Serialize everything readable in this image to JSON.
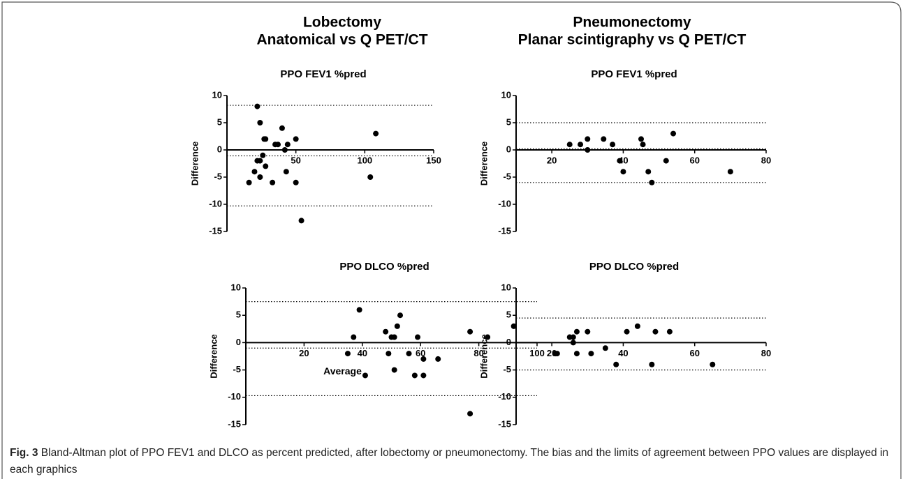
{
  "headers": [
    {
      "title": "Lobectomy",
      "subtitle": "Anatomical vs Q PET/CT"
    },
    {
      "title": "Pneumonectomy",
      "subtitle": "Planar scintigraphy vs Q PET/CT"
    }
  ],
  "chart_data": [
    {
      "type": "scatter",
      "title": "PPO FEV1 %pred",
      "y_label": "Difference",
      "color": "#000000",
      "x": [
        26,
        22,
        24,
        27,
        28,
        35,
        37,
        40,
        42,
        44,
        50,
        108,
        28,
        20,
        24,
        22,
        24,
        16,
        33,
        43,
        50,
        104,
        54
      ],
      "values": [
        -1,
        8,
        5,
        2,
        2,
        1,
        1,
        4,
        0,
        1,
        2,
        3,
        -3,
        -4,
        -2,
        -2,
        -5,
        -6,
        -6,
        -4,
        -6,
        -5,
        -13
      ],
      "reference_lines": [
        8.2,
        -1.1,
        -10.3
      ],
      "xlim": [
        0,
        150
      ],
      "xticks": [
        50,
        100,
        150
      ],
      "ylim": [
        -15,
        10
      ],
      "yticks": [
        10,
        5,
        0,
        -5,
        -10,
        -15
      ]
    },
    {
      "type": "scatter",
      "title": "PPO FEV1 %pred",
      "y_label": "Difference",
      "color": "#000000",
      "x": [
        25,
        28,
        30,
        30,
        34.5,
        37,
        40,
        39,
        45,
        45.5,
        47,
        48,
        52,
        54,
        70
      ],
      "values": [
        1,
        1,
        2,
        0,
        2,
        1,
        -4,
        -2,
        2,
        1,
        -4,
        -6,
        -2,
        3,
        -4
      ],
      "reference_lines": [
        5,
        0.2,
        -6
      ],
      "xlim": [
        10,
        80
      ],
      "xticks": [
        20,
        40,
        60,
        80
      ],
      "ylim": [
        -15,
        10
      ],
      "yticks": [
        10,
        5,
        0,
        -5,
        -10,
        -15
      ]
    },
    {
      "type": "scatter",
      "title": "PPO DLCO %pred",
      "y_label": "Difference",
      "x_label": "Average",
      "color": "#000000",
      "x": [
        37,
        39,
        35,
        41,
        48,
        49,
        50,
        51,
        52,
        53,
        51,
        56,
        58,
        59,
        61,
        61,
        66,
        77,
        77,
        83,
        92
      ],
      "values": [
        1,
        6,
        -2,
        -6,
        2,
        -2,
        1,
        1,
        3,
        5,
        -5,
        -2,
        -6,
        1,
        -6,
        -3,
        -3,
        2,
        -13,
        1,
        3
      ],
      "reference_lines": [
        7.5,
        -1,
        -9.7
      ],
      "xlim": [
        0,
        100
      ],
      "xticks": [
        20,
        40,
        60,
        80,
        100
      ],
      "ylim": [
        -15,
        10
      ],
      "yticks": [
        10,
        5,
        0,
        -5,
        -10,
        -15
      ]
    },
    {
      "type": "scatter",
      "title": "PPO DLCO %pred",
      "y_label": "Difference",
      "color": "#000000",
      "x": [
        21,
        21.5,
        25,
        26,
        26,
        27,
        27,
        30,
        31,
        35,
        38,
        41,
        44,
        48,
        49,
        53,
        65
      ],
      "values": [
        -2,
        -2,
        1,
        1,
        0,
        2,
        -2,
        2,
        -2,
        -1,
        -4,
        2,
        3,
        -4,
        2,
        2,
        -4
      ],
      "reference_lines": [
        4.5,
        0,
        -5
      ],
      "xlim": [
        10,
        80
      ],
      "xticks": [
        20,
        40,
        60,
        80
      ],
      "ylim": [
        -15,
        10
      ],
      "yticks": [
        10,
        5,
        0,
        -5,
        -10,
        -15
      ]
    }
  ],
  "caption": {
    "label": "Fig. 3",
    "text": "Bland-Altman plot of PPO FEV1 and DLCO as percent predicted, after lobectomy or pneumonectomy. The bias and the limits of agreement between PPO values are displayed in each graphics"
  }
}
